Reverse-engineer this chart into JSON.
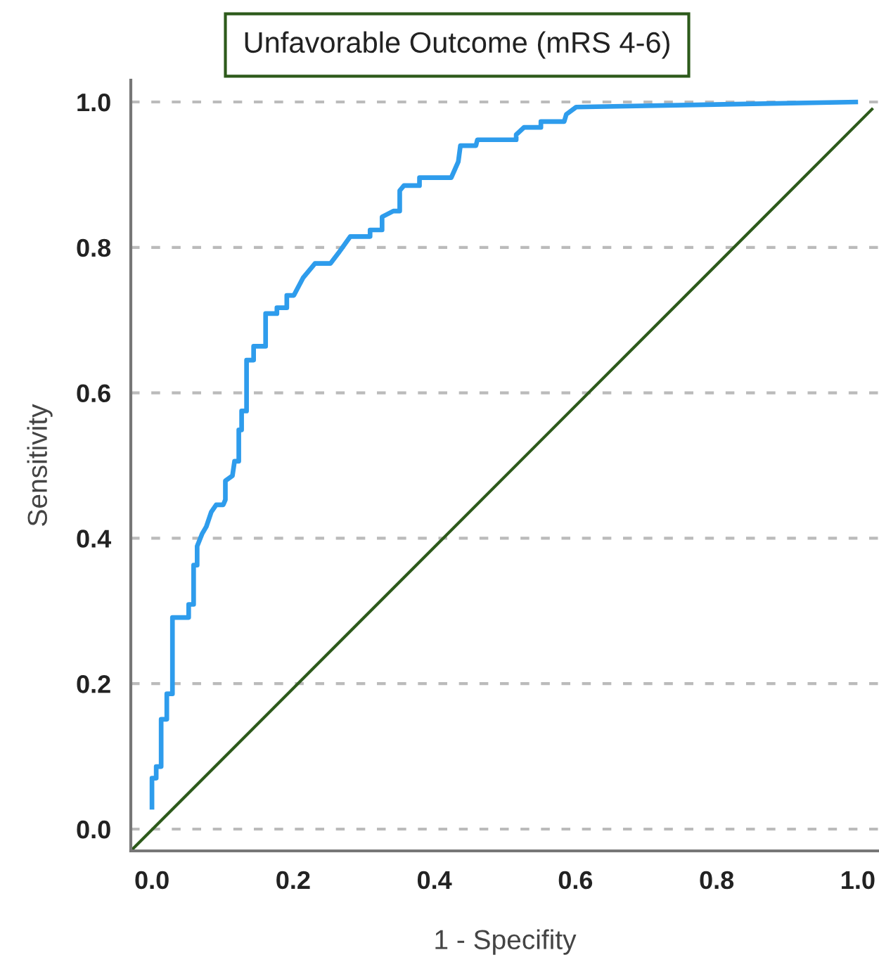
{
  "chart_data": {
    "type": "line",
    "title": "Unfavorable Outcome (mRS 4-6)",
    "xlabel": "1 - Specifity",
    "ylabel": "Sensitivity",
    "xlim": [
      -0.03,
      1.03
    ],
    "ylim": [
      -0.03,
      1.03
    ],
    "xticks": [
      {
        "value": 0,
        "label": "0.0"
      },
      0.2,
      0.4,
      0.6,
      0.8,
      {
        "value": 1,
        "label": "1.0"
      }
    ],
    "yticks": [
      {
        "value": 0,
        "label": "0.0"
      },
      0.2,
      0.4,
      0.6,
      0.8,
      {
        "value": 1,
        "label": "1.0"
      }
    ],
    "grid": "y",
    "line_style": "solid",
    "marker": "none",
    "series": [
      {
        "color": "#2e9cec",
        "x": [
          0.0,
          0.0,
          0.006,
          0.006,
          0.013,
          0.013,
          0.021,
          0.021,
          0.029,
          0.029,
          0.052,
          0.052,
          0.059,
          0.059,
          0.064,
          0.064,
          0.071,
          0.077,
          0.084,
          0.091,
          0.101,
          0.104,
          0.104,
          0.114,
          0.117,
          0.123,
          0.123,
          0.127,
          0.127,
          0.134,
          0.134,
          0.144,
          0.144,
          0.161,
          0.161,
          0.177,
          0.177,
          0.191,
          0.191,
          0.201,
          0.214,
          0.231,
          0.253,
          0.264,
          0.281,
          0.309,
          0.309,
          0.326,
          0.326,
          0.342,
          0.351,
          0.351,
          0.357,
          0.379,
          0.379,
          0.424,
          0.434,
          0.437,
          0.459,
          0.461,
          0.516,
          0.516,
          0.527,
          0.551,
          0.551,
          0.584,
          0.587,
          0.601,
          0.997
        ],
        "values": [
          0.03,
          0.07,
          0.07,
          0.086,
          0.086,
          0.151,
          0.151,
          0.186,
          0.186,
          0.291,
          0.291,
          0.309,
          0.309,
          0.363,
          0.363,
          0.389,
          0.406,
          0.416,
          0.436,
          0.446,
          0.446,
          0.453,
          0.479,
          0.486,
          0.506,
          0.506,
          0.549,
          0.549,
          0.575,
          0.575,
          0.645,
          0.645,
          0.664,
          0.664,
          0.709,
          0.709,
          0.717,
          0.717,
          0.734,
          0.734,
          0.758,
          0.778,
          0.778,
          0.792,
          0.815,
          0.815,
          0.824,
          0.824,
          0.842,
          0.85,
          0.85,
          0.878,
          0.885,
          0.885,
          0.896,
          0.896,
          0.918,
          0.94,
          0.94,
          0.948,
          0.948,
          0.955,
          0.965,
          0.965,
          0.973,
          0.973,
          0.983,
          0.993,
          1.0
        ]
      },
      {
        "color": "#2d5a1b",
        "x": [
          -0.03,
          1.02
        ],
        "values": [
          -0.03,
          0.99
        ]
      }
    ]
  }
}
